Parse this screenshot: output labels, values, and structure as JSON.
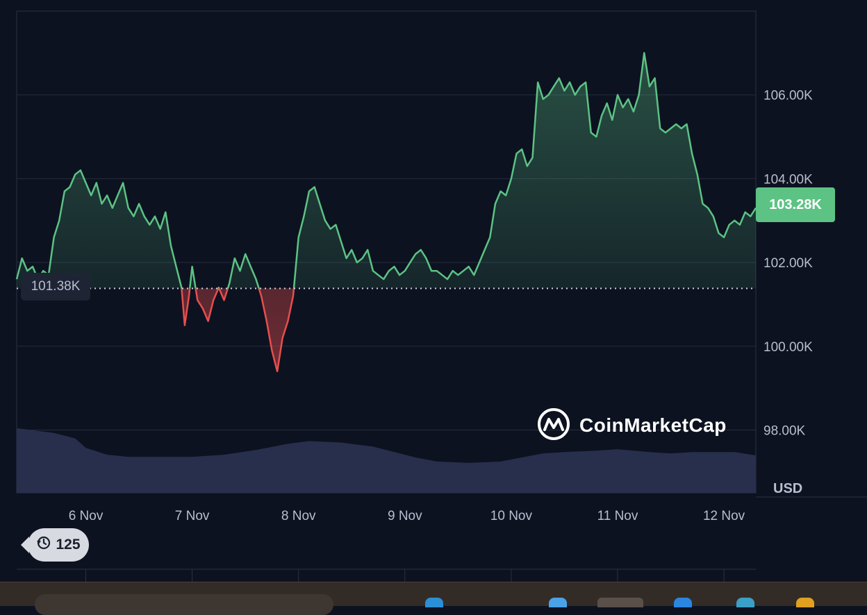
{
  "chart_data": {
    "type": "area",
    "currency_label": "USD",
    "y_ticks": [
      "106.00K",
      "104.00K",
      "102.00K",
      "100.00K",
      "98.00K"
    ],
    "y_tick_values": [
      106000,
      104000,
      102000,
      100000,
      98000
    ],
    "x_ticks": [
      "6 Nov",
      "7 Nov",
      "8 Nov",
      "9 Nov",
      "10 Nov",
      "11 Nov",
      "12 Nov"
    ],
    "x_tick_day_positions": [
      6.0,
      7.0,
      8.0,
      9.0,
      10.0,
      11.0,
      12.0
    ],
    "x_range_days": [
      5.35,
      12.3
    ],
    "ylim": [
      96500,
      108000
    ],
    "current_price": 103280,
    "current_price_label": "103.28K",
    "reference_price": 101380,
    "reference_price_label": "101.38K",
    "colors": {
      "above": "#5cc384",
      "below": "#e84e4e",
      "volume": "#2b3352"
    },
    "price_series": [
      [
        5.35,
        101.6
      ],
      [
        5.4,
        102.1
      ],
      [
        5.45,
        101.8
      ],
      [
        5.5,
        101.9
      ],
      [
        5.55,
        101.6
      ],
      [
        5.6,
        101.8
      ],
      [
        5.65,
        101.7
      ],
      [
        5.7,
        102.6
      ],
      [
        5.75,
        103.0
      ],
      [
        5.8,
        103.7
      ],
      [
        5.85,
        103.8
      ],
      [
        5.9,
        104.1
      ],
      [
        5.95,
        104.2
      ],
      [
        6.0,
        103.9
      ],
      [
        6.05,
        103.6
      ],
      [
        6.1,
        103.9
      ],
      [
        6.15,
        103.4
      ],
      [
        6.2,
        103.6
      ],
      [
        6.25,
        103.3
      ],
      [
        6.3,
        103.6
      ],
      [
        6.35,
        103.9
      ],
      [
        6.4,
        103.3
      ],
      [
        6.45,
        103.1
      ],
      [
        6.5,
        103.4
      ],
      [
        6.55,
        103.1
      ],
      [
        6.6,
        102.9
      ],
      [
        6.65,
        103.1
      ],
      [
        6.7,
        102.8
      ],
      [
        6.75,
        103.2
      ],
      [
        6.8,
        102.4
      ],
      [
        6.85,
        101.9
      ],
      [
        6.9,
        101.4
      ],
      [
        6.93,
        100.5
      ],
      [
        6.97,
        101.2
      ],
      [
        7.0,
        101.9
      ],
      [
        7.05,
        101.1
      ],
      [
        7.1,
        100.9
      ],
      [
        7.15,
        100.6
      ],
      [
        7.2,
        101.1
      ],
      [
        7.25,
        101.4
      ],
      [
        7.3,
        101.1
      ],
      [
        7.35,
        101.5
      ],
      [
        7.4,
        102.1
      ],
      [
        7.45,
        101.8
      ],
      [
        7.5,
        102.2
      ],
      [
        7.55,
        101.9
      ],
      [
        7.6,
        101.6
      ],
      [
        7.65,
        101.2
      ],
      [
        7.7,
        100.6
      ],
      [
        7.75,
        99.9
      ],
      [
        7.8,
        99.4
      ],
      [
        7.85,
        100.2
      ],
      [
        7.9,
        100.6
      ],
      [
        7.95,
        101.2
      ],
      [
        8.0,
        102.6
      ],
      [
        8.05,
        103.1
      ],
      [
        8.1,
        103.7
      ],
      [
        8.15,
        103.8
      ],
      [
        8.2,
        103.4
      ],
      [
        8.25,
        103.0
      ],
      [
        8.3,
        102.8
      ],
      [
        8.35,
        102.9
      ],
      [
        8.4,
        102.5
      ],
      [
        8.45,
        102.1
      ],
      [
        8.5,
        102.3
      ],
      [
        8.55,
        102.0
      ],
      [
        8.6,
        102.1
      ],
      [
        8.65,
        102.3
      ],
      [
        8.7,
        101.8
      ],
      [
        8.75,
        101.7
      ],
      [
        8.8,
        101.6
      ],
      [
        8.85,
        101.8
      ],
      [
        8.9,
        101.9
      ],
      [
        8.95,
        101.7
      ],
      [
        9.0,
        101.8
      ],
      [
        9.05,
        102.0
      ],
      [
        9.1,
        102.2
      ],
      [
        9.15,
        102.3
      ],
      [
        9.2,
        102.1
      ],
      [
        9.25,
        101.8
      ],
      [
        9.3,
        101.8
      ],
      [
        9.35,
        101.7
      ],
      [
        9.4,
        101.6
      ],
      [
        9.45,
        101.8
      ],
      [
        9.5,
        101.7
      ],
      [
        9.55,
        101.8
      ],
      [
        9.6,
        101.9
      ],
      [
        9.65,
        101.7
      ],
      [
        9.7,
        102.0
      ],
      [
        9.75,
        102.3
      ],
      [
        9.8,
        102.6
      ],
      [
        9.85,
        103.4
      ],
      [
        9.9,
        103.7
      ],
      [
        9.95,
        103.6
      ],
      [
        10.0,
        104.0
      ],
      [
        10.05,
        104.6
      ],
      [
        10.1,
        104.7
      ],
      [
        10.15,
        104.3
      ],
      [
        10.2,
        104.5
      ],
      [
        10.25,
        106.3
      ],
      [
        10.3,
        105.9
      ],
      [
        10.35,
        106.0
      ],
      [
        10.4,
        106.2
      ],
      [
        10.45,
        106.4
      ],
      [
        10.5,
        106.1
      ],
      [
        10.55,
        106.3
      ],
      [
        10.6,
        106.0
      ],
      [
        10.65,
        106.2
      ],
      [
        10.7,
        106.3
      ],
      [
        10.75,
        105.1
      ],
      [
        10.8,
        105.0
      ],
      [
        10.85,
        105.5
      ],
      [
        10.9,
        105.8
      ],
      [
        10.95,
        105.4
      ],
      [
        11.0,
        106.0
      ],
      [
        11.05,
        105.7
      ],
      [
        11.1,
        105.9
      ],
      [
        11.15,
        105.6
      ],
      [
        11.2,
        106.0
      ],
      [
        11.25,
        107.0
      ],
      [
        11.3,
        106.2
      ],
      [
        11.35,
        106.4
      ],
      [
        11.4,
        105.2
      ],
      [
        11.45,
        105.1
      ],
      [
        11.5,
        105.2
      ],
      [
        11.55,
        105.3
      ],
      [
        11.6,
        105.2
      ],
      [
        11.65,
        105.3
      ],
      [
        11.7,
        104.6
      ],
      [
        11.75,
        104.1
      ],
      [
        11.8,
        103.4
      ],
      [
        11.85,
        103.3
      ],
      [
        11.9,
        103.1
      ],
      [
        11.95,
        102.7
      ],
      [
        12.0,
        102.6
      ],
      [
        12.05,
        102.9
      ],
      [
        12.1,
        103.0
      ],
      [
        12.15,
        102.9
      ],
      [
        12.2,
        103.2
      ],
      [
        12.25,
        103.1
      ],
      [
        12.3,
        103.3
      ]
    ],
    "volume_series": [
      [
        5.35,
        0.95
      ],
      [
        5.5,
        0.92
      ],
      [
        5.7,
        0.88
      ],
      [
        5.9,
        0.8
      ],
      [
        6.0,
        0.66
      ],
      [
        6.2,
        0.56
      ],
      [
        6.4,
        0.53
      ],
      [
        6.7,
        0.53
      ],
      [
        7.0,
        0.53
      ],
      [
        7.3,
        0.56
      ],
      [
        7.6,
        0.63
      ],
      [
        7.9,
        0.72
      ],
      [
        8.1,
        0.76
      ],
      [
        8.4,
        0.74
      ],
      [
        8.7,
        0.68
      ],
      [
        8.9,
        0.6
      ],
      [
        9.1,
        0.52
      ],
      [
        9.3,
        0.46
      ],
      [
        9.6,
        0.44
      ],
      [
        9.9,
        0.46
      ],
      [
        10.1,
        0.52
      ],
      [
        10.3,
        0.58
      ],
      [
        10.5,
        0.6
      ],
      [
        10.8,
        0.62
      ],
      [
        11.0,
        0.64
      ],
      [
        11.3,
        0.6
      ],
      [
        11.5,
        0.58
      ],
      [
        11.7,
        0.6
      ],
      [
        11.9,
        0.6
      ],
      [
        12.1,
        0.6
      ],
      [
        12.3,
        0.55
      ]
    ]
  },
  "watermark": {
    "text": "CoinMarketCap",
    "icon": "coinmarketcap-logo-icon"
  },
  "history_badge": {
    "icon": "history-clock-icon",
    "count": "125"
  }
}
